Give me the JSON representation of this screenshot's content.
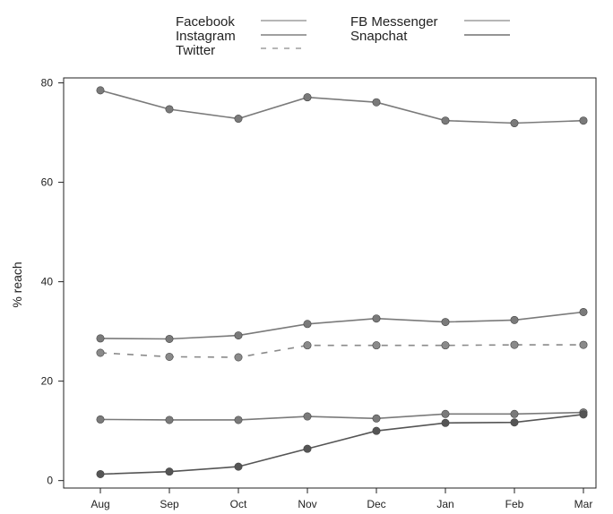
{
  "chart_data": {
    "type": "line",
    "categories": [
      "Aug",
      "Sep",
      "Oct",
      "Nov",
      "Dec",
      "Jan",
      "Feb",
      "Mar"
    ],
    "xlabel": "",
    "ylabel": "% reach",
    "ylim": [
      -1.5,
      81
    ],
    "yticks": [
      0,
      20,
      40,
      60,
      80
    ],
    "legend_position": "top",
    "grid": false,
    "series": [
      {
        "name": "Facebook",
        "style": "solid",
        "color": "#7a7a7a",
        "marker": "circle",
        "values": [
          78.5,
          74.7,
          72.8,
          77.1,
          76.1,
          72.4,
          71.9,
          72.4
        ]
      },
      {
        "name": "FB Messenger",
        "style": "solid",
        "color": "#7a7a7a",
        "marker": "circle",
        "values": [
          28.6,
          28.5,
          29.2,
          31.5,
          32.6,
          31.9,
          32.3,
          33.9
        ]
      },
      {
        "name": "Twitter",
        "style": "dashed",
        "color": "#8a8a8a",
        "marker": "circle",
        "values": [
          25.7,
          24.9,
          24.8,
          27.2,
          27.2,
          27.2,
          27.3,
          27.3
        ]
      },
      {
        "name": "Instagram",
        "style": "solid",
        "color": "#7a7a7a",
        "marker": "circle",
        "values": [
          12.3,
          12.2,
          12.2,
          12.9,
          12.5,
          13.4,
          13.4,
          13.7
        ]
      },
      {
        "name": "Snapchat",
        "style": "solid",
        "color": "#555555",
        "marker": "circle",
        "values": [
          1.3,
          1.8,
          2.8,
          6.4,
          10.0,
          11.6,
          11.7,
          13.3
        ]
      }
    ],
    "legend": {
      "left": [
        "Facebook",
        "Instagram",
        "Twitter"
      ],
      "right": [
        "FB Messenger",
        "Snapchat"
      ]
    }
  }
}
